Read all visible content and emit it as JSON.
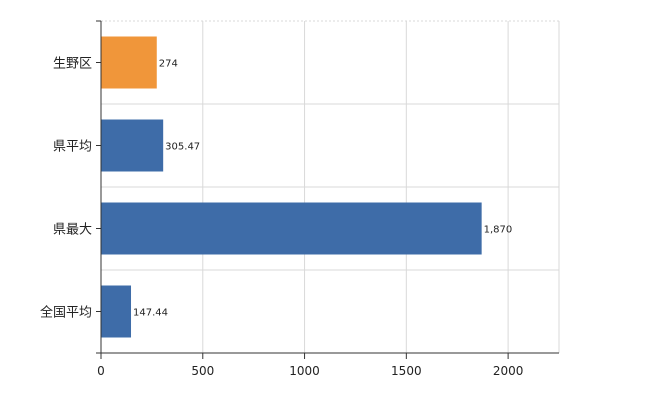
{
  "chart_data": {
    "type": "bar",
    "orientation": "horizontal",
    "title": "",
    "xlabel": "",
    "ylabel": "",
    "categories": [
      "生野区",
      "県平均",
      "県最大",
      "全国平均"
    ],
    "values": [
      274,
      305.47,
      1870,
      147.44
    ],
    "value_labels": [
      "274",
      "305.47",
      "1,870",
      "147.44"
    ],
    "bar_colors": [
      "#f0963a",
      "#3e6ca8",
      "#3e6ca8",
      "#3e6ca8"
    ],
    "xlim": [
      0,
      2250
    ],
    "x_ticks": [
      0,
      500,
      1000,
      1500,
      2000
    ],
    "x_tick_labels": [
      "0",
      "500",
      "1000",
      "1500",
      "2000"
    ],
    "grid": true,
    "legend": "none"
  }
}
